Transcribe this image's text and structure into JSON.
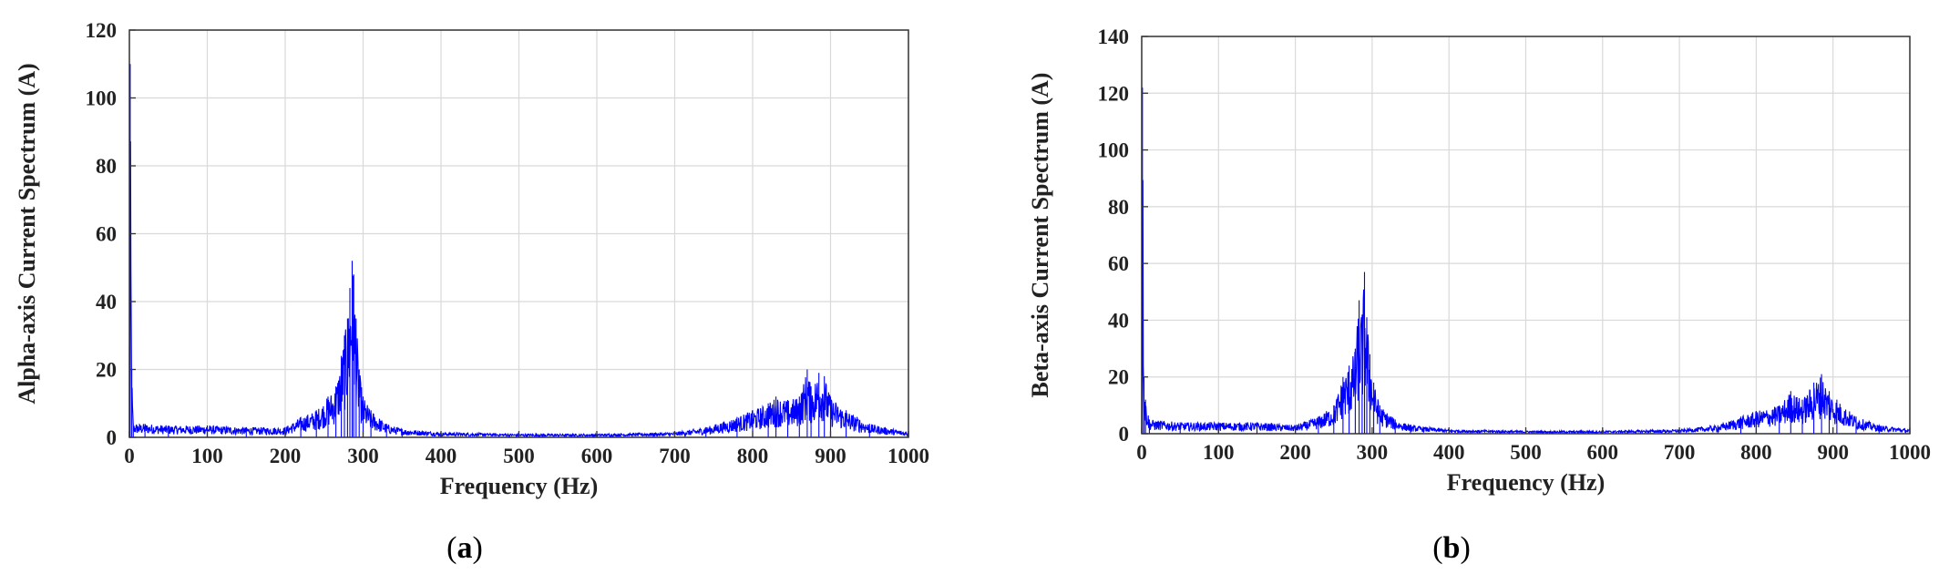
{
  "chart_data": [
    {
      "type": "line",
      "panel_label": "a",
      "xlabel": "Frequency (Hz)",
      "ylabel": "Alpha-axis Current Spectrum (A)",
      "xlim": [
        0,
        1000
      ],
      "ylim": [
        0,
        120
      ],
      "xticks": [
        0,
        100,
        200,
        300,
        400,
        500,
        600,
        700,
        800,
        900,
        1000
      ],
      "yticks": [
        0,
        20,
        40,
        60,
        80,
        100,
        120
      ],
      "grid": true,
      "color": "#0000ff",
      "series": [
        {
          "values": [
            [
              0,
              27
            ],
            [
              1,
              110
            ],
            [
              3,
              20
            ],
            [
              5,
              4
            ],
            [
              20,
              4
            ],
            [
              50,
              3.5
            ],
            [
              100,
              3.5
            ],
            [
              150,
              3
            ],
            [
              200,
              3
            ],
            [
              220,
              6
            ],
            [
              240,
              8
            ],
            [
              255,
              12
            ],
            [
              265,
              15
            ],
            [
              272,
              24
            ],
            [
              276,
              30
            ],
            [
              280,
              35
            ],
            [
              283,
              44
            ],
            [
              286,
              52
            ],
            [
              288,
              48
            ],
            [
              291,
              35
            ],
            [
              295,
              20
            ],
            [
              300,
              12
            ],
            [
              310,
              8
            ],
            [
              330,
              4
            ],
            [
              350,
              2.5
            ],
            [
              400,
              1.5
            ],
            [
              500,
              1
            ],
            [
              600,
              1
            ],
            [
              700,
              1.5
            ],
            [
              740,
              3
            ],
            [
              780,
              6
            ],
            [
              800,
              8
            ],
            [
              820,
              10
            ],
            [
              830,
              12
            ],
            [
              845,
              11
            ],
            [
              860,
              12
            ],
            [
              870,
              20
            ],
            [
              875,
              15
            ],
            [
              885,
              19
            ],
            [
              892,
              18
            ],
            [
              900,
              12
            ],
            [
              920,
              8
            ],
            [
              950,
              4
            ],
            [
              1000,
              1.5
            ]
          ]
        }
      ]
    },
    {
      "type": "line",
      "panel_label": "b",
      "xlabel": "Frequency (Hz)",
      "ylabel": "Beta-axis Current Spectrum (A)",
      "xlim": [
        0,
        1000
      ],
      "ylim": [
        0,
        140
      ],
      "xticks": [
        0,
        100,
        200,
        300,
        400,
        500,
        600,
        700,
        800,
        900,
        1000
      ],
      "yticks": [
        0,
        20,
        40,
        60,
        80,
        100,
        120,
        140
      ],
      "grid": true,
      "color": "#0000ff",
      "series": [
        {
          "values": [
            [
              0,
              40
            ],
            [
              1,
              122
            ],
            [
              3,
              20
            ],
            [
              5,
              12
            ],
            [
              10,
              5
            ],
            [
              50,
              4
            ],
            [
              100,
              4
            ],
            [
              150,
              4
            ],
            [
              200,
              3
            ],
            [
              230,
              6
            ],
            [
              250,
              10
            ],
            [
              262,
              20
            ],
            [
              270,
              24
            ],
            [
              278,
              30
            ],
            [
              283,
              47
            ],
            [
              287,
              42
            ],
            [
              290,
              57
            ],
            [
              293,
              41
            ],
            [
              297,
              28
            ],
            [
              302,
              18
            ],
            [
              310,
              10
            ],
            [
              330,
              5
            ],
            [
              350,
              3
            ],
            [
              400,
              1.5
            ],
            [
              500,
              1
            ],
            [
              600,
              1
            ],
            [
              700,
              1.5
            ],
            [
              750,
              3
            ],
            [
              780,
              6
            ],
            [
              800,
              8
            ],
            [
              830,
              10
            ],
            [
              845,
              15
            ],
            [
              860,
              12
            ],
            [
              875,
              18
            ],
            [
              885,
              21
            ],
            [
              895,
              15
            ],
            [
              905,
              12
            ],
            [
              930,
              6
            ],
            [
              960,
              3
            ],
            [
              1000,
              1.5
            ]
          ]
        }
      ]
    }
  ]
}
